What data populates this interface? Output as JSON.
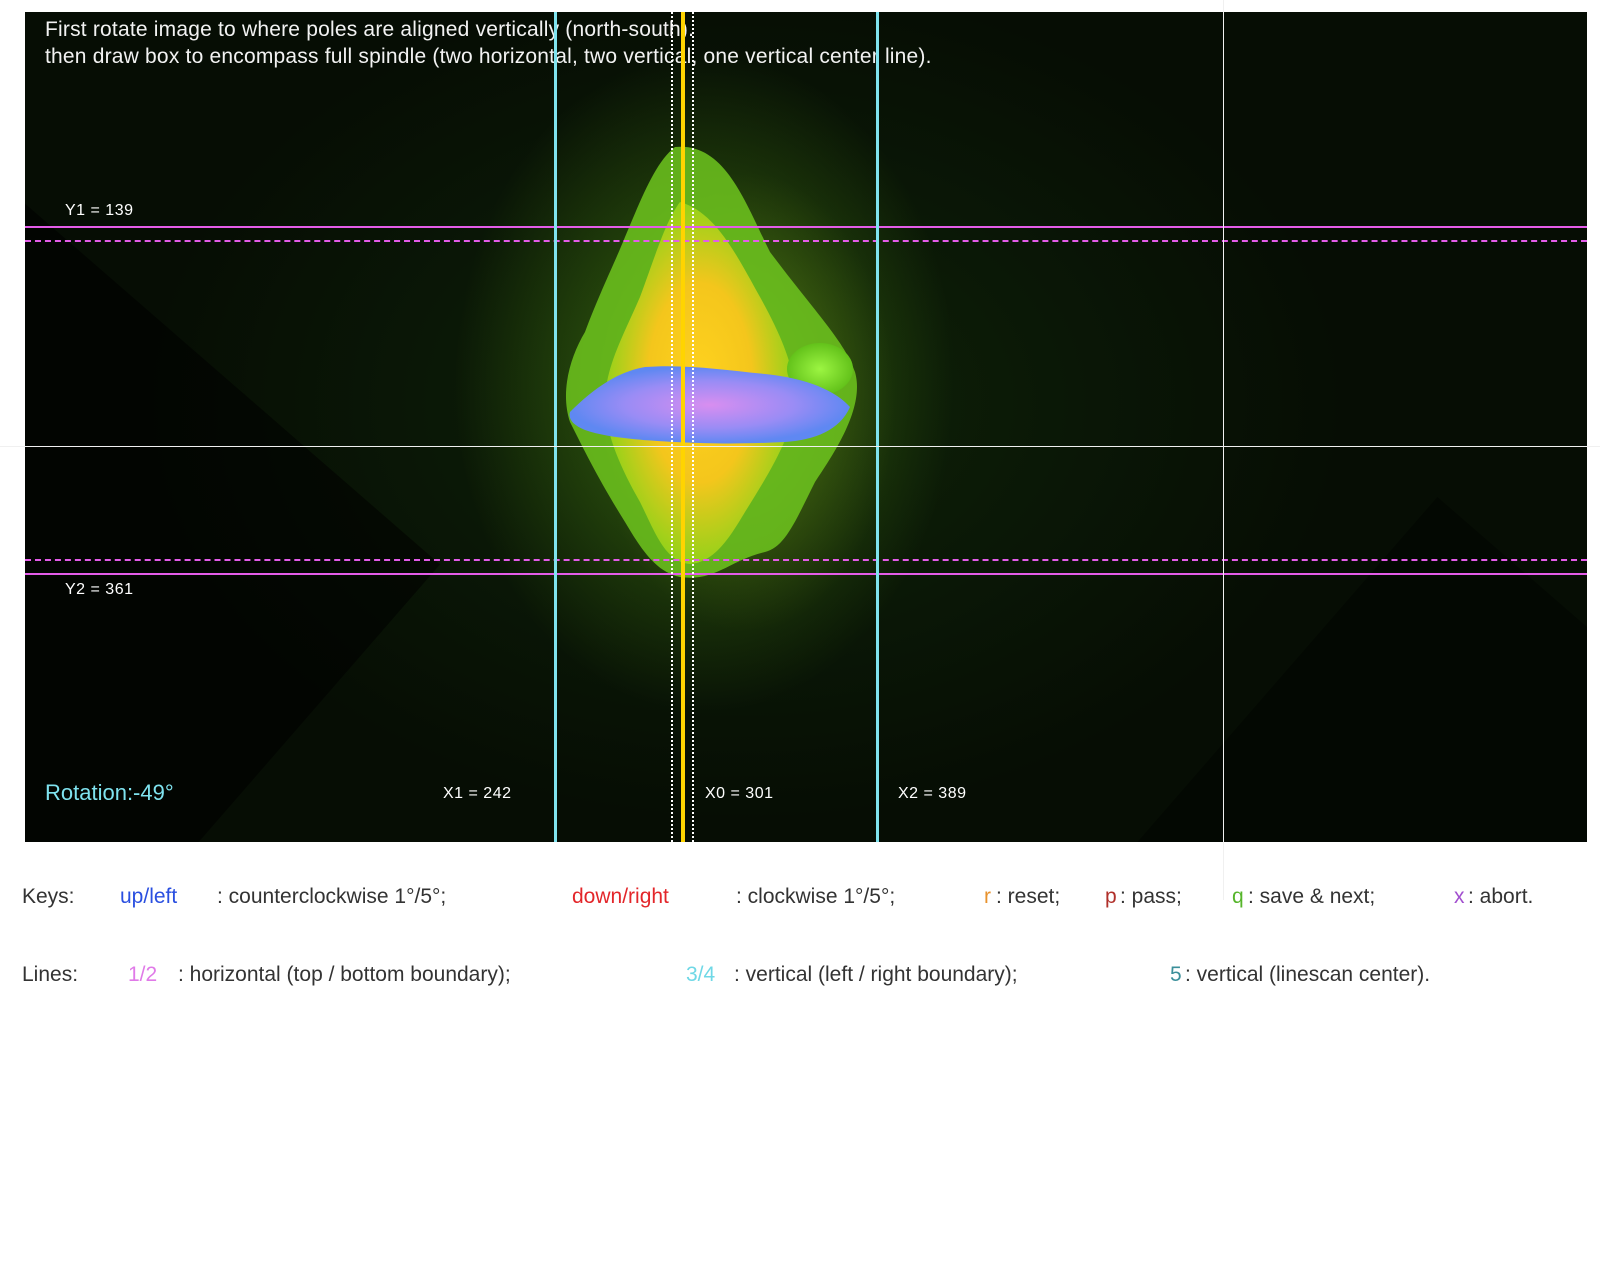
{
  "instructions": {
    "line1": "First rotate image to where poles are aligned vertically (north-south).",
    "line2": "then draw box to encompass full spindle (two horizontal, two vertical, one vertical center line)."
  },
  "labels": {
    "y1": "Y1 = 139",
    "y2": "Y2 = 361",
    "x1": "X1 = 242",
    "x0": "X0 = 301",
    "x2": "X2 = 389"
  },
  "rotation": "Rotation:-49°",
  "legend": {
    "keys": {
      "prefix": "Keys:",
      "up_left": "up/left",
      "up_left_desc": ": counterclockwise 1°/5°;",
      "down_right": "down/right",
      "down_right_desc": ": clockwise 1°/5°;",
      "r": "r",
      "r_desc": ": reset;",
      "p": "p",
      "p_desc": ": pass;",
      "q": "q",
      "q_desc": ": save & next;",
      "x": "x",
      "x_desc": ": abort."
    },
    "lines": {
      "prefix": "Lines:",
      "k12": "1/2",
      "k12_desc": ": horizontal (top / bottom boundary);",
      "k34": "3/4",
      "k34_desc": ": vertical (left / right boundary);",
      "k5": "5",
      "k5_desc": ": vertical (linescan center)."
    }
  },
  "colors": {
    "horizontal_boundary": "#e35ce8",
    "vertical_boundary": "#7fe3ef",
    "center_line": "#ffd400",
    "crosshair": "#f0f0f0",
    "rotation_text": "#7fe3ef"
  }
}
